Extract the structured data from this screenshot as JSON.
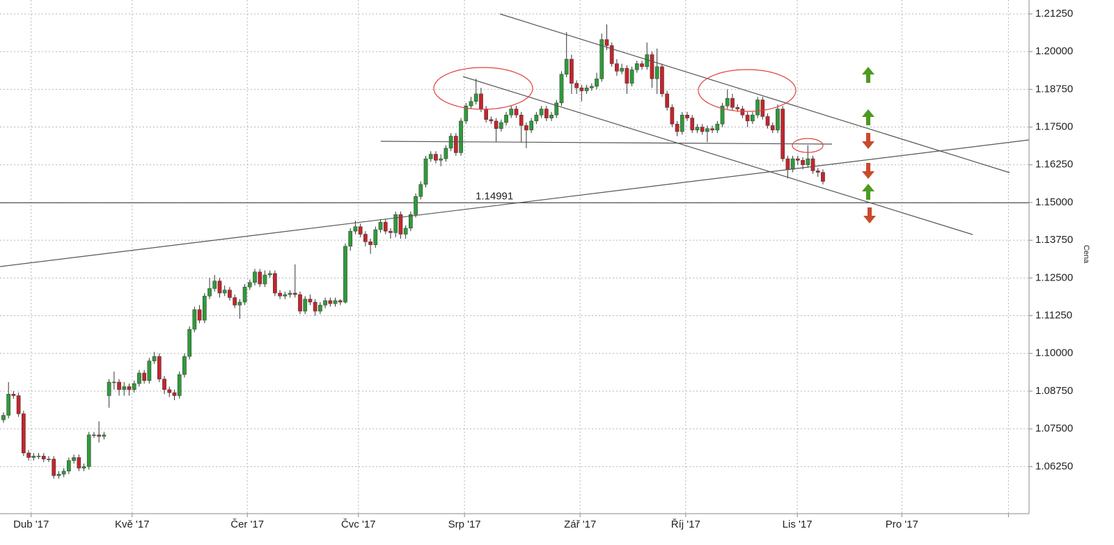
{
  "chart_data": {
    "type": "candlestick",
    "y_axis_label": "Cena",
    "ylim": [
      1.0469,
      1.2171
    ],
    "yticks": [
      {
        "value": 1.0625,
        "label": "1.06250"
      },
      {
        "value": 1.075,
        "label": "1.07500"
      },
      {
        "value": 1.0875,
        "label": "1.08750"
      },
      {
        "value": 1.1,
        "label": "1.10000"
      },
      {
        "value": 1.1125,
        "label": "1.11250"
      },
      {
        "value": 1.125,
        "label": "1.12500"
      },
      {
        "value": 1.1375,
        "label": "1.13750"
      },
      {
        "value": 1.15,
        "label": "1.15000"
      },
      {
        "value": 1.1625,
        "label": "1.16250"
      },
      {
        "value": 1.175,
        "label": "1.17500"
      },
      {
        "value": 1.1875,
        "label": "1.18750"
      },
      {
        "value": 1.2,
        "label": "1.20000"
      },
      {
        "value": 1.2125,
        "label": "1.21250"
      }
    ],
    "xlim": [
      -0.69,
      204.0
    ],
    "xticks": [
      {
        "value": 5.5,
        "label": "Dub '17"
      },
      {
        "value": 25.6,
        "label": "Kvě '17"
      },
      {
        "value": 48.5,
        "label": "Čer '17"
      },
      {
        "value": 70.6,
        "label": "Čvc '17"
      },
      {
        "value": 91.7,
        "label": "Srp '17"
      },
      {
        "value": 114.7,
        "label": "Zář '17"
      },
      {
        "value": 135.7,
        "label": "Říj '17"
      },
      {
        "value": 157.9,
        "label": "Lis '17"
      },
      {
        "value": 178.7,
        "label": "Pro '17"
      },
      {
        "value": 199.9,
        "label": null
      }
    ],
    "grid": true,
    "up_color": "#2f9a3a",
    "down_color": "#c4252d",
    "hline": {
      "value": 1.14991,
      "label": "1.14991",
      "color": "#555555"
    },
    "x": [
      0,
      1,
      2,
      3,
      4,
      5,
      6,
      7,
      8,
      9,
      10,
      11,
      12,
      13,
      14,
      15,
      16,
      17,
      18,
      19,
      20,
      21,
      22,
      23,
      24,
      25,
      26,
      27,
      28,
      29,
      30,
      31,
      32,
      33,
      34,
      35,
      36,
      37,
      38,
      39,
      40,
      41,
      42,
      43,
      44,
      45,
      46,
      47,
      48,
      49,
      50,
      51,
      52,
      53,
      54,
      55,
      56,
      57,
      58,
      59,
      60,
      61,
      62,
      63,
      64,
      65,
      66,
      67,
      68,
      69,
      70,
      71,
      72,
      73,
      74,
      75,
      76,
      77,
      78,
      79,
      80,
      81,
      82,
      83,
      84,
      85,
      86,
      87,
      88,
      89,
      90,
      91,
      92,
      93,
      94,
      95,
      96,
      97,
      98,
      99,
      100,
      101,
      102,
      103,
      104,
      105,
      106,
      107,
      108,
      109,
      110,
      111,
      112,
      113,
      114,
      115,
      116,
      117,
      118,
      119,
      120,
      121,
      122,
      123,
      124,
      125,
      126,
      127,
      128,
      129,
      130,
      131,
      132,
      133,
      134,
      135,
      136,
      137,
      138,
      139,
      140,
      141,
      142,
      143,
      144,
      145,
      146,
      147,
      148,
      149,
      150,
      151,
      152,
      153,
      154,
      155,
      156,
      157,
      158,
      159,
      160,
      161,
      162,
      163
    ],
    "open": [
      1.078,
      1.0795,
      1.0865,
      1.086,
      1.08,
      1.067,
      1.0655,
      1.066,
      1.066,
      1.065,
      1.065,
      1.0595,
      1.06,
      1.061,
      1.0645,
      1.0655,
      1.062,
      1.0625,
      1.073,
      1.073,
      1.0725,
      1.086,
      1.0905,
      1.0905,
      1.088,
      1.089,
      1.088,
      1.09,
      1.0935,
      1.091,
      1.0975,
      1.099,
      1.0915,
      1.088,
      1.087,
      1.086,
      1.093,
      1.099,
      1.108,
      1.1145,
      1.111,
      1.119,
      1.1215,
      1.124,
      1.12,
      1.121,
      1.1185,
      1.116,
      1.117,
      1.122,
      1.1235,
      1.127,
      1.123,
      1.126,
      1.1265,
      1.12,
      1.119,
      1.1195,
      1.12,
      1.1195,
      1.114,
      1.118,
      1.117,
      1.114,
      1.116,
      1.1175,
      1.1165,
      1.1175,
      1.117,
      1.1355,
      1.1405,
      1.142,
      1.1395,
      1.137,
      1.136,
      1.141,
      1.1435,
      1.1405,
      1.14,
      1.146,
      1.1395,
      1.1415,
      1.146,
      1.152,
      1.156,
      1.1645,
      1.166,
      1.164,
      1.1645,
      1.168,
      1.172,
      1.1665,
      1.177,
      1.182,
      1.1835,
      1.186,
      1.181,
      1.1775,
      1.177,
      1.1745,
      1.1765,
      1.179,
      1.181,
      1.179,
      1.1755,
      1.174,
      1.177,
      1.179,
      1.181,
      1.178,
      1.179,
      1.183,
      1.1925,
      1.1975,
      1.1895,
      1.188,
      1.187,
      1.188,
      1.1885,
      1.191,
      1.204,
      1.202,
      1.196,
      1.1935,
      1.1945,
      1.1895,
      1.194,
      1.196,
      1.195,
      1.199,
      1.191,
      1.195,
      1.186,
      1.1815,
      1.176,
      1.1735,
      1.179,
      1.178,
      1.174,
      1.175,
      1.1735,
      1.1745,
      1.174,
      1.176,
      1.182,
      1.1845,
      1.1815,
      1.181,
      1.179,
      1.177,
      1.179,
      1.184,
      1.1785,
      1.1755,
      1.174,
      1.181,
      1.1645,
      1.161,
      1.1645,
      1.164,
      1.1625,
      1.1645,
      1.1605,
      1.16
    ],
    "high": [
      1.0805,
      1.0905,
      1.0875,
      1.087,
      1.081,
      1.068,
      1.067,
      1.067,
      1.067,
      1.066,
      1.066,
      1.061,
      1.062,
      1.0655,
      1.0665,
      1.0665,
      1.0635,
      1.074,
      1.074,
      1.0775,
      1.074,
      1.0915,
      1.094,
      1.0915,
      1.0905,
      1.09,
      1.091,
      1.0945,
      1.0945,
      1.0985,
      1.1005,
      1.1,
      1.0925,
      1.089,
      1.088,
      1.094,
      1.1,
      1.109,
      1.1155,
      1.116,
      1.12,
      1.125,
      1.126,
      1.125,
      1.1225,
      1.122,
      1.1195,
      1.118,
      1.123,
      1.1245,
      1.128,
      1.128,
      1.1275,
      1.1275,
      1.1275,
      1.121,
      1.1205,
      1.121,
      1.1295,
      1.1205,
      1.119,
      1.1195,
      1.118,
      1.117,
      1.1185,
      1.1185,
      1.1185,
      1.118,
      1.1365,
      1.1415,
      1.144,
      1.143,
      1.1405,
      1.138,
      1.142,
      1.1445,
      1.1445,
      1.1415,
      1.147,
      1.147,
      1.1425,
      1.147,
      1.153,
      1.157,
      1.1655,
      1.167,
      1.167,
      1.166,
      1.169,
      1.173,
      1.173,
      1.178,
      1.183,
      1.185,
      1.191,
      1.188,
      1.182,
      1.1785,
      1.178,
      1.1775,
      1.18,
      1.182,
      1.182,
      1.18,
      1.1765,
      1.178,
      1.18,
      1.182,
      1.182,
      1.18,
      1.184,
      1.1935,
      1.2065,
      1.199,
      1.1905,
      1.189,
      1.189,
      1.1895,
      1.193,
      1.206,
      1.209,
      1.203,
      1.1975,
      1.196,
      1.1955,
      1.195,
      1.197,
      1.197,
      1.203,
      1.2,
      1.201,
      1.196,
      1.187,
      1.1825,
      1.177,
      1.18,
      1.18,
      1.179,
      1.176,
      1.176,
      1.1755,
      1.1755,
      1.177,
      1.183,
      1.1875,
      1.186,
      1.1825,
      1.182,
      1.18,
      1.18,
      1.185,
      1.185,
      1.1795,
      1.1765,
      1.1825,
      1.182,
      1.1655,
      1.1655,
      1.1655,
      1.165,
      1.169,
      1.1655,
      1.1615,
      1.161
    ],
    "low": [
      1.077,
      1.0785,
      1.085,
      1.079,
      1.066,
      1.0645,
      1.0645,
      1.065,
      1.064,
      1.064,
      1.0585,
      1.0585,
      1.059,
      1.06,
      1.0635,
      1.061,
      1.061,
      1.0615,
      1.072,
      1.0705,
      1.0715,
      1.082,
      1.088,
      1.086,
      1.086,
      1.086,
      1.087,
      1.089,
      1.09,
      1.09,
      1.0965,
      1.0905,
      1.0865,
      1.0855,
      1.0845,
      1.085,
      1.092,
      1.098,
      1.107,
      1.11,
      1.11,
      1.118,
      1.1205,
      1.1185,
      1.119,
      1.1175,
      1.115,
      1.1115,
      1.116,
      1.121,
      1.1225,
      1.122,
      1.122,
      1.125,
      1.119,
      1.118,
      1.118,
      1.1185,
      1.1185,
      1.113,
      1.113,
      1.116,
      1.1125,
      1.113,
      1.115,
      1.1155,
      1.1155,
      1.116,
      1.1165,
      1.134,
      1.1395,
      1.1385,
      1.1355,
      1.133,
      1.135,
      1.14,
      1.1395,
      1.138,
      1.1385,
      1.138,
      1.138,
      1.1405,
      1.145,
      1.151,
      1.155,
      1.1635,
      1.163,
      1.162,
      1.1635,
      1.167,
      1.1655,
      1.1655,
      1.176,
      1.181,
      1.1825,
      1.18,
      1.1765,
      1.176,
      1.17,
      1.1735,
      1.1755,
      1.178,
      1.178,
      1.17,
      1.168,
      1.173,
      1.176,
      1.178,
      1.177,
      1.177,
      1.178,
      1.182,
      1.1915,
      1.186,
      1.186,
      1.1835,
      1.186,
      1.187,
      1.1875,
      1.19,
      1.2005,
      1.195,
      1.192,
      1.1925,
      1.186,
      1.1885,
      1.193,
      1.194,
      1.194,
      1.188,
      1.186,
      1.185,
      1.1805,
      1.175,
      1.172,
      1.1725,
      1.177,
      1.173,
      1.173,
      1.1725,
      1.17,
      1.173,
      1.173,
      1.175,
      1.181,
      1.1805,
      1.18,
      1.178,
      1.175,
      1.176,
      1.178,
      1.1775,
      1.1745,
      1.173,
      1.173,
      1.1635,
      1.158,
      1.16,
      1.1625,
      1.161,
      1.1615,
      1.1595,
      1.1585,
      1.156
    ],
    "close": [
      1.0795,
      1.0865,
      1.086,
      1.08,
      1.067,
      1.0655,
      1.066,
      1.066,
      1.065,
      1.065,
      1.0595,
      1.06,
      1.061,
      1.0645,
      1.0655,
      1.062,
      1.0625,
      1.073,
      1.073,
      1.0725,
      1.073,
      1.0905,
      1.0905,
      1.088,
      1.089,
      1.088,
      1.09,
      1.0935,
      1.091,
      1.0975,
      1.099,
      1.0915,
      1.088,
      1.087,
      1.086,
      1.093,
      1.099,
      1.108,
      1.1145,
      1.111,
      1.119,
      1.1215,
      1.124,
      1.12,
      1.121,
      1.1185,
      1.116,
      1.117,
      1.122,
      1.1235,
      1.127,
      1.123,
      1.126,
      1.1265,
      1.12,
      1.119,
      1.1195,
      1.12,
      1.1195,
      1.114,
      1.118,
      1.117,
      1.114,
      1.116,
      1.1175,
      1.1165,
      1.1175,
      1.117,
      1.1355,
      1.1405,
      1.142,
      1.1395,
      1.137,
      1.136,
      1.141,
      1.1435,
      1.1405,
      1.14,
      1.146,
      1.1395,
      1.1415,
      1.146,
      1.152,
      1.156,
      1.1645,
      1.166,
      1.164,
      1.1645,
      1.168,
      1.172,
      1.1665,
      1.177,
      1.182,
      1.1835,
      1.186,
      1.181,
      1.1775,
      1.177,
      1.1745,
      1.1765,
      1.179,
      1.181,
      1.179,
      1.1755,
      1.174,
      1.177,
      1.179,
      1.181,
      1.178,
      1.179,
      1.183,
      1.1925,
      1.1975,
      1.1895,
      1.188,
      1.187,
      1.188,
      1.1885,
      1.191,
      1.204,
      1.202,
      1.196,
      1.1935,
      1.1945,
      1.1895,
      1.194,
      1.196,
      1.195,
      1.199,
      1.191,
      1.195,
      1.186,
      1.1815,
      1.176,
      1.1735,
      1.179,
      1.178,
      1.174,
      1.175,
      1.1735,
      1.1745,
      1.174,
      1.176,
      1.182,
      1.1845,
      1.1815,
      1.181,
      1.179,
      1.177,
      1.179,
      1.184,
      1.1785,
      1.1755,
      1.174,
      1.181,
      1.1645,
      1.161,
      1.1645,
      1.164,
      1.1625,
      1.1645,
      1.1605,
      1.16,
      1.157
    ]
  }
}
